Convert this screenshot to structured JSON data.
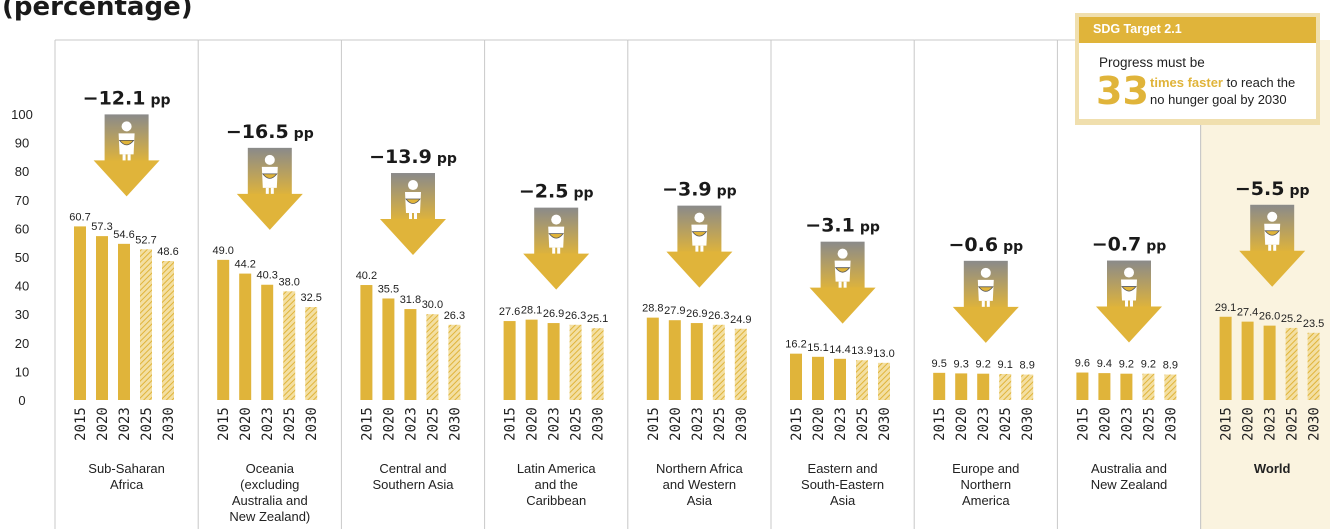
{
  "page": {
    "title": "(percentage)"
  },
  "sdg": {
    "header": "SDG Target 2.1",
    "line1": "Progress must be",
    "number": "33",
    "highlight": "times faster",
    "line2_rest": " to reach the",
    "line3": "no hunger goal by 2030"
  },
  "colors": {
    "bar": "#e0b43a",
    "bar_hatch": "#e0b43a",
    "arrow_box_top": "#888888",
    "arrow_box_bottom": "#e0b43a",
    "world_panel": "#faf3df",
    "grid_border": "#c8c8c8"
  },
  "icons": {
    "person": "person-with-bowl-icon"
  },
  "chart_data": {
    "type": "bar",
    "ylim": [
      0,
      100
    ],
    "yticks": [
      "0",
      "10",
      "20",
      "30",
      "40",
      "50",
      "60",
      "70",
      "80",
      "90",
      "100"
    ],
    "grid": false,
    "legend": "none",
    "categories": [
      "2015",
      "2020",
      "2023",
      "2025",
      "2030"
    ],
    "projected_from_index": 3,
    "groups": [
      {
        "name": "Sub-Saharan Africa",
        "label_lines": [
          "Sub-Saharan",
          "Africa"
        ],
        "change": "−12.1",
        "unit": "pp",
        "values": [
          60.7,
          57.3,
          54.6,
          52.7,
          48.6
        ],
        "labels": [
          "60.7",
          "57.3",
          "54.6",
          "52.7",
          "48.6"
        ],
        "highlight": false
      },
      {
        "name": "Oceania (excluding Australia and New Zealand)",
        "label_lines": [
          "Oceania",
          "(excluding",
          "Australia and",
          "New Zealand)"
        ],
        "change": "−16.5",
        "unit": "pp",
        "values": [
          49.0,
          44.2,
          40.3,
          38.0,
          32.5
        ],
        "labels": [
          "49.0",
          "44.2",
          "40.3",
          "38.0",
          "32.5"
        ],
        "highlight": false
      },
      {
        "name": "Central and Southern Asia",
        "label_lines": [
          "Central and",
          "Southern Asia"
        ],
        "change": "−13.9",
        "unit": "pp",
        "values": [
          40.2,
          35.5,
          31.8,
          30.0,
          26.3
        ],
        "labels": [
          "40.2",
          "35.5",
          "31.8",
          "30.0",
          "26.3"
        ],
        "highlight": false
      },
      {
        "name": "Latin America and the Caribbean",
        "label_lines": [
          "Latin America",
          "and the",
          "Caribbean"
        ],
        "change": "−2.5",
        "unit": "pp",
        "values": [
          27.6,
          28.1,
          26.9,
          26.3,
          25.1
        ],
        "labels": [
          "27.6",
          "28.1",
          "26.9",
          "26.3",
          "25.1"
        ],
        "highlight": false
      },
      {
        "name": "Northern Africa and Western Asia",
        "label_lines": [
          "Northern Africa",
          "and Western",
          "Asia"
        ],
        "change": "−3.9",
        "unit": "pp",
        "values": [
          28.8,
          27.9,
          26.9,
          26.3,
          24.9
        ],
        "labels": [
          "28.8",
          "27.9",
          "26.9",
          "26.3",
          "24.9"
        ],
        "highlight": false
      },
      {
        "name": "Eastern and South-Eastern Asia",
        "label_lines": [
          "Eastern and",
          "South-Eastern",
          "Asia"
        ],
        "change": "−3.1",
        "unit": "pp",
        "values": [
          16.2,
          15.1,
          14.4,
          13.9,
          13.0
        ],
        "labels": [
          "16.2",
          "15.1",
          "14.4",
          "13.9",
          "13.0"
        ],
        "highlight": false
      },
      {
        "name": "Europe and Northern America",
        "label_lines": [
          "Europe and",
          "Northern",
          "America"
        ],
        "change": "−0.6",
        "unit": "pp",
        "values": [
          9.5,
          9.3,
          9.2,
          9.1,
          8.9
        ],
        "labels": [
          "9.5",
          "9.3",
          "9.2",
          "9.1",
          "8.9"
        ],
        "highlight": false
      },
      {
        "name": "Australia and New Zealand",
        "label_lines": [
          "Australia and",
          "New Zealand"
        ],
        "change": "−0.7",
        "unit": "pp",
        "values": [
          9.6,
          9.4,
          9.2,
          9.2,
          8.9
        ],
        "labels": [
          "9.6",
          "9.4",
          "9.2",
          "9.2",
          "8.9"
        ],
        "highlight": false
      },
      {
        "name": "World",
        "label_lines": [
          "World"
        ],
        "change": "−5.5",
        "unit": "pp",
        "values": [
          29.1,
          27.4,
          26.0,
          25.2,
          23.5
        ],
        "labels": [
          "29.1",
          "27.4",
          "26.0",
          "25.2",
          "23.5"
        ],
        "highlight": true
      }
    ]
  }
}
